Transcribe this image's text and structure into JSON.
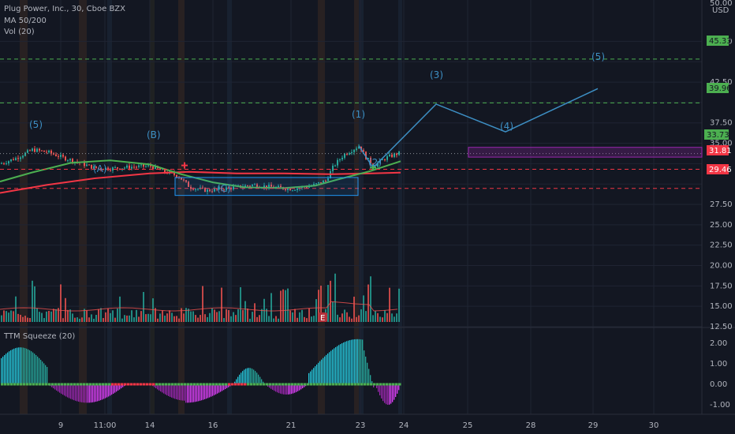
{
  "header": {
    "title": "Plug Power, Inc., 30, Cboe BZX",
    "study1": "MA 50/200",
    "study2": "Vol (20)",
    "ttm_label": "TTM Squeeze (20)"
  },
  "axis": {
    "unit_top": "50.00",
    "currency": "USD",
    "price_ticks": [
      "47.50",
      "42.50",
      "37.50",
      "35.00",
      "27.50",
      "25.00",
      "22.50",
      "20.00",
      "17.50",
      "15.00",
      "12.50"
    ],
    "osc_ticks": [
      "2.00",
      "1.00",
      "0.00",
      "-1.00"
    ],
    "x_ticks": [
      "9",
      "11:00",
      "14",
      "16",
      "21",
      "23",
      "24",
      "25",
      "28",
      "29",
      "30"
    ]
  },
  "price_labels": [
    {
      "text": "45.33",
      "color": "#4caf50"
    },
    {
      "text": "39.96",
      "color": "#4caf50"
    },
    {
      "text": "33.73",
      "color": "#4caf50"
    },
    {
      "text": "31.81",
      "color": "#f23645"
    },
    {
      "text": "29.46",
      "color": "#f23645"
    }
  ],
  "wave_labels": [
    "(5)",
    "(B)",
    "(A)",
    "(C)",
    "(1)",
    "(2)",
    "(3)",
    "(4)",
    "(5)"
  ],
  "earnings_marker": "E",
  "colors": {
    "background": "#131722",
    "up": "#26a69a",
    "down": "#ef5350",
    "ma50": "#4caf50",
    "ma200": "#f23645",
    "projection": "#3d8fc4",
    "target_box": "#9c27b0"
  },
  "chart_data": {
    "type": "line",
    "title": "Plug Power, Inc., 30, Cboe BZX",
    "ylim": [
      11,
      50
    ],
    "y_scale": "linear",
    "series": [
      {
        "name": "MA 50/200",
        "values": []
      }
    ],
    "price_path": {
      "x": [
        "9",
        "11:00",
        "14",
        "16",
        "21",
        "23",
        "24"
      ],
      "close": [
        33.6,
        31.9,
        31.8,
        29.6,
        29.4,
        34.5,
        33.7
      ]
    },
    "projection_path": {
      "labels": [
        "(2)",
        "(3)",
        "(4)",
        "(5)"
      ],
      "values": [
        32.0,
        39.8,
        36.4,
        41.7
      ]
    },
    "horizontal_levels": [
      45.33,
      39.96,
      33.73,
      31.81,
      29.46
    ],
    "oscillator": {
      "name": "TTM Squeeze (20)",
      "ylim": [
        -1.2,
        2.5
      ]
    },
    "grid": true,
    "legend_placement": "top-left"
  }
}
